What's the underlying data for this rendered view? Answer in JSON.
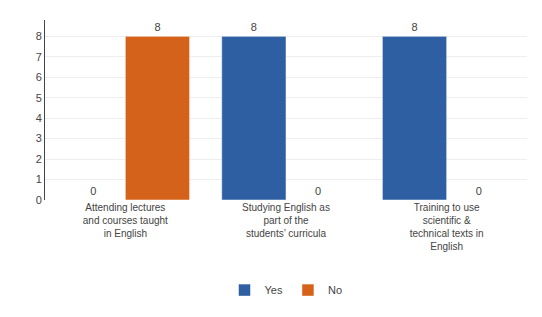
{
  "chart_data": {
    "type": "bar",
    "categories": [
      "Attending lectures\nand courses taught\nin English",
      "Studying English as\npart of the\nstudents’ curricula",
      "Training to use\nscientific &\ntechnical texts in\nEnglish"
    ],
    "series": [
      {
        "name": "Yes",
        "color": "#2E5FA3",
        "values": [
          0,
          8,
          8
        ]
      },
      {
        "name": "No",
        "color": "#D4621A",
        "values": [
          8,
          0,
          0
        ]
      }
    ],
    "ylim": [
      0,
      8.8
    ],
    "yticks": [
      0,
      1,
      2,
      3,
      4,
      5,
      6,
      7,
      8
    ],
    "grid": true,
    "legend": "bottom",
    "data_labels": true
  }
}
